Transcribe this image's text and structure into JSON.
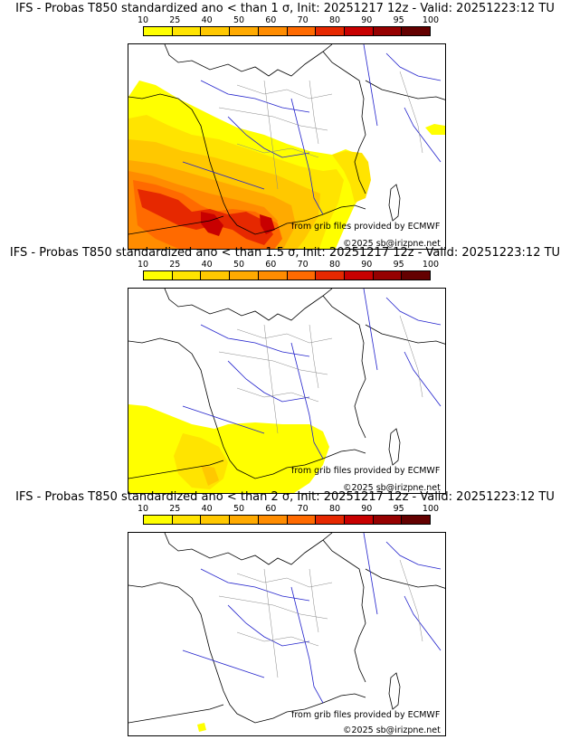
{
  "legend": {
    "ticks": [
      "10",
      "25",
      "40",
      "50",
      "60",
      "70",
      "80",
      "90",
      "95",
      "100"
    ],
    "colors": [
      "#ffff00",
      "#ffe400",
      "#ffc800",
      "#ffaa00",
      "#ff8c00",
      "#ff6a00",
      "#e62800",
      "#c80000",
      "#960000",
      "#640000"
    ]
  },
  "panels": [
    {
      "title": "IFS - Probas T850  standardized ano < than 1 σ, Init: 20251217 12z - Valid: 20251223:12 TU",
      "credit_source": "from grib files provided by ECMWF",
      "credit_copyright": "©2025 sb@irizpne.net"
    },
    {
      "title": "IFS - Probas T850  standardized ano < than 1.5 σ, Init: 20251217 12z - Valid: 20251223:12 TU",
      "credit_source": "from grib files provided by ECMWF",
      "credit_copyright": "©2025 sb@irizpne.net"
    },
    {
      "title": "IFS - Probas T850  standardized ano < than 2 σ, Init: 20251217 12z - Valid: 20251223:12 TU",
      "credit_source": "from grib files provided by ECMWF",
      "credit_copyright": "©2025 sb@irizpne.net"
    }
  ]
}
